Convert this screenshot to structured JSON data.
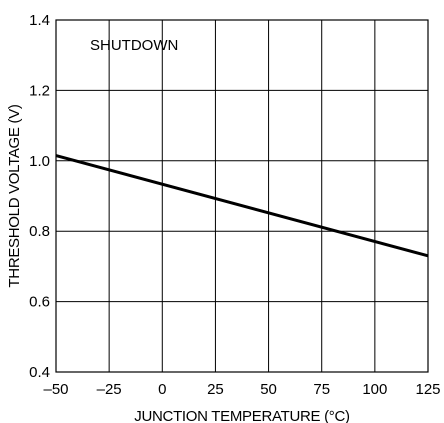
{
  "chart_data": {
    "type": "line",
    "xlabel": "JUNCTION TEMPERATURE (°C)",
    "ylabel": "THRESHOLD VOLTAGE (V)",
    "annotation": "SHUTDOWN",
    "xlim": [
      -50,
      125
    ],
    "ylim": [
      0.4,
      1.4
    ],
    "x_ticks": [
      -50,
      -25,
      0,
      25,
      50,
      75,
      100,
      125
    ],
    "x_tick_labels": [
      "–50",
      "–25",
      "0",
      "25",
      "50",
      "75",
      "100",
      "125"
    ],
    "y_ticks": [
      0.4,
      0.6,
      0.8,
      1.0,
      1.2,
      1.4
    ],
    "y_tick_labels": [
      "0.4",
      "0.6",
      "0.8",
      "1.0",
      "1.2",
      "1.4"
    ],
    "grid": true,
    "series": [
      {
        "x": [
          -50,
          125
        ],
        "y": [
          1.015,
          0.73
        ]
      }
    ],
    "colors": {
      "line": "#000000",
      "grid": "#000000",
      "background": "#ffffff"
    }
  }
}
